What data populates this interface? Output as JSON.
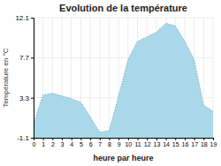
{
  "chart_data": {
    "type": "area",
    "title": "Evolution de la température",
    "x_label": "heure par heure",
    "y_label": "Température en °C",
    "x": [
      0,
      1,
      2,
      3,
      4,
      5,
      6,
      7,
      8,
      9,
      10,
      11,
      12,
      13,
      14,
      15,
      16,
      17,
      18,
      19
    ],
    "values": [
      0.5,
      3.6,
      3.8,
      3.5,
      3.2,
      2.8,
      1.2,
      -0.5,
      -0.3,
      3.5,
      7.5,
      9.5,
      10.0,
      10.5,
      11.5,
      11.2,
      9.5,
      7.5,
      2.5,
      1.8
    ],
    "xlim": [
      0,
      19
    ],
    "xticks": [
      0,
      1,
      2,
      3,
      4,
      5,
      6,
      7,
      8,
      9,
      10,
      11,
      12,
      13,
      14,
      15,
      16,
      17,
      18,
      19
    ],
    "ylim": [
      -1.1,
      12.1
    ],
    "yticks": [
      -1.1,
      3.3,
      7.7,
      12.1
    ],
    "color": "#a8d8ea",
    "line_style": "dotted",
    "grid": true
  }
}
